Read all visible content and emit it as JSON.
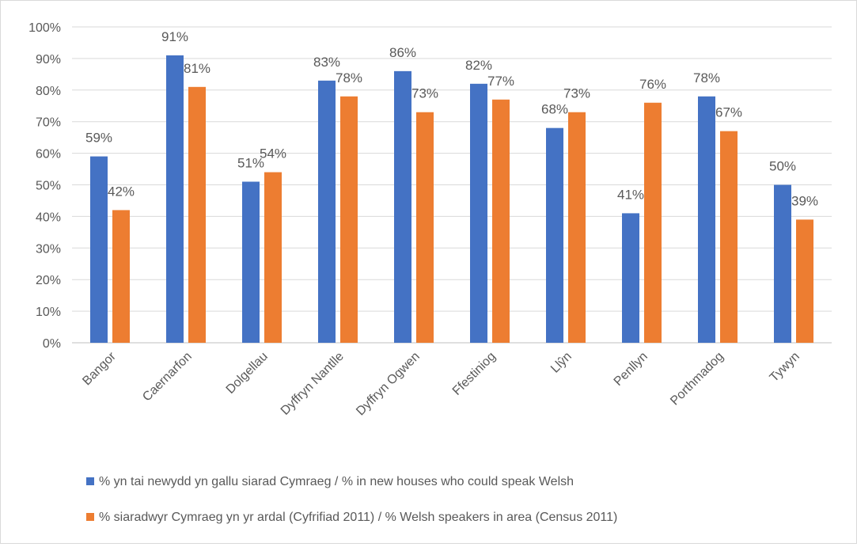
{
  "chart_data": {
    "type": "bar",
    "title": "",
    "xlabel": "",
    "ylabel": "",
    "ylim": [
      0,
      100
    ],
    "y_ticks": [
      "0%",
      "10%",
      "20%",
      "30%",
      "40%",
      "50%",
      "60%",
      "70%",
      "80%",
      "90%",
      "100%"
    ],
    "y_tick_values": [
      0,
      10,
      20,
      30,
      40,
      50,
      60,
      70,
      80,
      90,
      100
    ],
    "grid": true,
    "legend_placement": "bottom",
    "categories": [
      "Bangor",
      "Caernarfon",
      "Dolgellau",
      "Dyffryn Nantlle",
      "Dyffryn Ogwen",
      "Ffestiniog",
      "Llŷn",
      "Penllyn",
      "Porthmadog",
      "Tywyn"
    ],
    "series": [
      {
        "name": "% yn tai newydd yn gallu siarad Cymraeg / % in new houses who could speak Welsh",
        "color": "#4472c4",
        "values": [
          59,
          91,
          51,
          83,
          86,
          82,
          68,
          41,
          78,
          50
        ],
        "labels": [
          "59%",
          "91%",
          "51%",
          "83%",
          "86%",
          "82%",
          "68%",
          "41%",
          "78%",
          "50%"
        ]
      },
      {
        "name": "% siaradwyr Cymraeg yn yr ardal (Cyfrifiad 2011) / % Welsh speakers in area (Census 2011)",
        "color": "#ed7d31",
        "values": [
          42,
          81,
          54,
          78,
          73,
          77,
          73,
          76,
          67,
          39
        ],
        "labels": [
          "42%",
          "81%",
          "54%",
          "78%",
          "73%",
          "77%",
          "73%",
          "76%",
          "67%",
          "39%"
        ]
      }
    ]
  }
}
